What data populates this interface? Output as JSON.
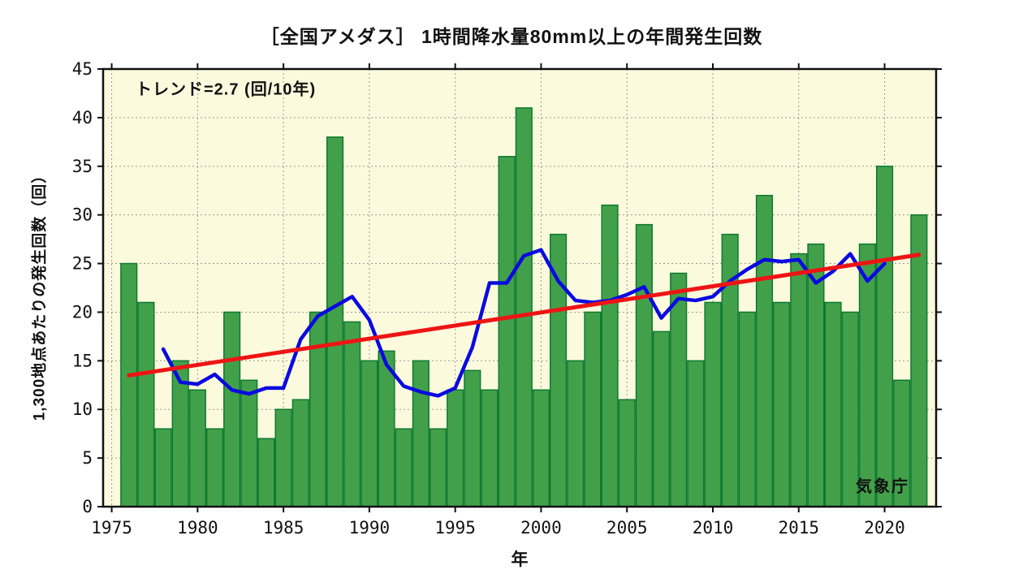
{
  "title": "［全国アメダス］ 1時間降水量80mm以上の年間発生回数",
  "annotation": "トレンド=2.7 (回/10年)",
  "ylabel": "1,300地点あたりの発生回数（回）",
  "xlabel": "年",
  "credit": "気象庁",
  "colors": {
    "plot_bg": "#fcfadd",
    "bar_fill": "#43a04a",
    "bar_stroke": "#0c7a30",
    "ma_line": "#0a0ae0",
    "trend_line": "#ee1414",
    "grid": "#999999",
    "axis": "#111111",
    "text": "#111111"
  },
  "chart_data": {
    "type": "bar",
    "title": "［全国アメダス］ 1時間降水量80mm以上の年間発生回数",
    "xlabel": "年",
    "ylabel": "1,300地点あたりの発生回数（回）",
    "xlim": [
      1974.5,
      2023.0
    ],
    "ylim": [
      0,
      45
    ],
    "xticks": [
      1975,
      1980,
      1985,
      1990,
      1995,
      2000,
      2005,
      2010,
      2015,
      2020
    ],
    "yticks": [
      0,
      5,
      10,
      15,
      20,
      25,
      30,
      35,
      40,
      45
    ],
    "grid": true,
    "legend_position": "none",
    "categories": [
      1976,
      1977,
      1978,
      1979,
      1980,
      1981,
      1982,
      1983,
      1984,
      1985,
      1986,
      1987,
      1988,
      1989,
      1990,
      1991,
      1992,
      1993,
      1994,
      1995,
      1996,
      1997,
      1998,
      1999,
      2000,
      2001,
      2002,
      2003,
      2004,
      2005,
      2006,
      2007,
      2008,
      2009,
      2010,
      2011,
      2012,
      2013,
      2014,
      2015,
      2016,
      2017,
      2018,
      2019,
      2020,
      2021,
      2022
    ],
    "series": [
      {
        "name": "annual_count_bars",
        "type": "bar",
        "values": [
          25,
          21,
          8,
          15,
          12,
          8,
          20,
          13,
          7,
          10,
          11,
          20,
          38,
          19,
          15,
          16,
          8,
          15,
          8,
          12,
          14,
          12,
          36,
          41,
          12,
          28,
          15,
          20,
          31,
          11,
          29,
          18,
          24,
          15,
          21,
          28,
          20,
          32,
          21,
          26,
          27,
          21,
          20,
          27,
          35,
          13,
          30
        ]
      },
      {
        "name": "5yr_moving_average",
        "type": "line",
        "x": [
          1978,
          1979,
          1980,
          1981,
          1982,
          1983,
          1984,
          1985,
          1986,
          1987,
          1988,
          1989,
          1990,
          1991,
          1992,
          1993,
          1994,
          1995,
          1996,
          1997,
          1998,
          1999,
          2000,
          2001,
          2002,
          2003,
          2004,
          2005,
          2006,
          2007,
          2008,
          2009,
          2010,
          2011,
          2012,
          2013,
          2014,
          2015,
          2016,
          2017,
          2018,
          2019,
          2020
        ],
        "values": [
          16.2,
          12.8,
          12.6,
          13.6,
          12.0,
          11.6,
          12.2,
          12.2,
          17.2,
          19.6,
          20.6,
          21.6,
          19.2,
          14.6,
          12.4,
          11.8,
          11.4,
          12.2,
          16.4,
          23.0,
          23.0,
          25.8,
          26.4,
          23.2,
          21.2,
          21.0,
          21.2,
          21.8,
          22.6,
          19.4,
          21.4,
          21.2,
          21.6,
          23.2,
          24.4,
          25.4,
          25.2,
          25.4,
          23.0,
          24.2,
          26.0,
          23.2,
          25.0
        ]
      },
      {
        "name": "trend",
        "type": "line",
        "x": [
          1976,
          2022
        ],
        "values": [
          13.5,
          25.9
        ],
        "slope_per_decade": 2.7
      }
    ]
  }
}
